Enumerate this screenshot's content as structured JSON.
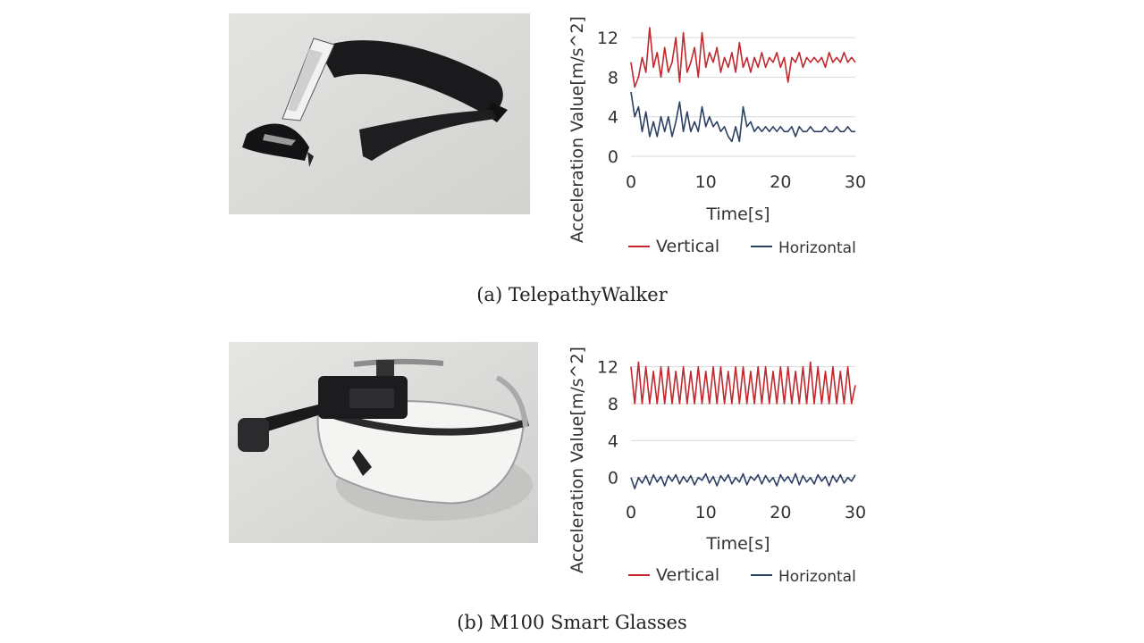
{
  "figure": {
    "caption_a": "(a)  TelepathyWalker",
    "caption_b": "(b)  M100 Smart Glasses"
  },
  "colors": {
    "vertical": "#c0282d",
    "horizontal": "#2d3f63"
  },
  "chart_data": [
    {
      "type": "line",
      "xlabel": "Time[s]",
      "ylabel": "Acceleration Value[m/s^2]",
      "xlim": [
        0,
        30
      ],
      "ylim": [
        0,
        14
      ],
      "xticks": [
        0,
        10,
        20,
        30
      ],
      "yticks": [
        0,
        4,
        8,
        12
      ],
      "grid": true,
      "legend_position": "bottom",
      "series": [
        {
          "name": "Vertical",
          "x": [
            0,
            0.5,
            1,
            1.5,
            2,
            2.5,
            3,
            3.5,
            4,
            4.5,
            5,
            5.5,
            6,
            6.5,
            7,
            7.5,
            8,
            8.5,
            9,
            9.5,
            10,
            10.5,
            11,
            11.5,
            12,
            12.5,
            13,
            13.5,
            14,
            14.5,
            15,
            15.5,
            16,
            16.5,
            17,
            17.5,
            18,
            18.5,
            19,
            19.5,
            20,
            20.5,
            21,
            21.5,
            22,
            22.5,
            23,
            23.5,
            24,
            24.5,
            25,
            25.5,
            26,
            26.5,
            27,
            27.5,
            28,
            28.5,
            29,
            29.5,
            30
          ],
          "y": [
            9.5,
            7,
            8,
            10,
            8.5,
            13,
            9,
            10.5,
            8,
            11,
            8.5,
            9.5,
            12,
            7.5,
            12.5,
            8.5,
            9.5,
            11,
            8,
            12.5,
            9,
            10.5,
            9.5,
            11,
            8.5,
            10,
            9,
            10.5,
            8.5,
            11.5,
            9,
            10,
            8.5,
            10,
            9,
            10.5,
            9,
            10,
            9.5,
            10.5,
            9,
            10,
            7.5,
            10,
            9.5,
            10.5,
            9,
            10,
            9.5,
            10,
            9.5,
            10,
            9,
            10.5,
            9.5,
            10,
            9.5,
            10.5,
            9.5,
            10,
            9.5
          ]
        },
        {
          "name": "Horizontal",
          "x": [
            0,
            0.5,
            1,
            1.5,
            2,
            2.5,
            3,
            3.5,
            4,
            4.5,
            5,
            5.5,
            6,
            6.5,
            7,
            7.5,
            8,
            8.5,
            9,
            9.5,
            10,
            10.5,
            11,
            11.5,
            12,
            12.5,
            13,
            13.5,
            14,
            14.5,
            15,
            15.5,
            16,
            16.5,
            17,
            17.5,
            18,
            18.5,
            19,
            19.5,
            20,
            20.5,
            21,
            21.5,
            22,
            22.5,
            23,
            23.5,
            24,
            24.5,
            25,
            25.5,
            26,
            26.5,
            27,
            27.5,
            28,
            28.5,
            29,
            29.5,
            30
          ],
          "y": [
            6.5,
            4,
            5,
            2.5,
            4.5,
            2,
            3.5,
            2,
            4,
            2.5,
            4,
            2,
            3.5,
            5.5,
            2.5,
            4.5,
            2.5,
            3.5,
            2.5,
            5,
            3,
            4,
            3,
            3.5,
            2.5,
            3,
            2,
            1.5,
            3,
            1.5,
            5,
            3,
            3.5,
            2.5,
            3,
            2.5,
            3,
            2.5,
            3,
            2.5,
            3,
            2.5,
            2.5,
            3,
            2,
            3,
            2.5,
            2.5,
            3,
            2.5,
            2.5,
            2.5,
            3,
            2.5,
            2.5,
            3,
            2.5,
            2.5,
            3,
            2.5,
            2.5
          ]
        }
      ]
    },
    {
      "type": "line",
      "xlabel": "Time[s]",
      "ylabel": "Acceleration Value[m/s^2]",
      "xlim": [
        0,
        30
      ],
      "ylim": [
        -1,
        14
      ],
      "xticks": [
        0,
        10,
        20,
        30
      ],
      "yticks": [
        0,
        4,
        8,
        12
      ],
      "yticks_display": [
        "0",
        "4",
        "8",
        "12"
      ],
      "grid": true,
      "legend_position": "bottom",
      "series": [
        {
          "name": "Vertical",
          "x": [
            0,
            0.5,
            1,
            1.5,
            2,
            2.5,
            3,
            3.5,
            4,
            4.5,
            5,
            5.5,
            6,
            6.5,
            7,
            7.5,
            8,
            8.5,
            9,
            9.5,
            10,
            10.5,
            11,
            11.5,
            12,
            12.5,
            13,
            13.5,
            14,
            14.5,
            15,
            15.5,
            16,
            16.5,
            17,
            17.5,
            18,
            18.5,
            19,
            19.5,
            20,
            20.5,
            21,
            21.5,
            22,
            22.5,
            23,
            23.5,
            24,
            24.5,
            25,
            25.5,
            26,
            26.5,
            27,
            27.5,
            28,
            28.5,
            29,
            29.5,
            30
          ],
          "y": [
            12,
            8,
            12.5,
            8,
            12,
            8,
            11.5,
            8,
            12,
            8,
            12,
            8,
            11.5,
            8,
            12,
            8,
            11.5,
            8,
            12,
            8,
            11.5,
            8,
            12,
            8,
            12,
            8,
            11.5,
            8,
            12,
            8,
            12,
            8,
            11.5,
            8,
            12,
            8,
            12,
            8,
            11.5,
            8,
            12,
            8,
            12,
            8,
            11.5,
            8,
            12,
            8,
            12.5,
            8,
            12,
            8,
            11.5,
            8,
            12,
            8,
            11.5,
            8,
            12,
            8,
            10
          ]
        },
        {
          "name": "Horizontal",
          "x": [
            0,
            0.5,
            1,
            1.5,
            2,
            2.5,
            3,
            3.5,
            4,
            4.5,
            5,
            5.5,
            6,
            6.5,
            7,
            7.5,
            8,
            8.5,
            9,
            9.5,
            10,
            10.5,
            11,
            11.5,
            12,
            12.5,
            13,
            13.5,
            14,
            14.5,
            15,
            15.5,
            16,
            16.5,
            17,
            17.5,
            18,
            18.5,
            19,
            19.5,
            20,
            20.5,
            21,
            21.5,
            22,
            22.5,
            23,
            23.5,
            24,
            24.5,
            25,
            25.5,
            26,
            26.5,
            27,
            27.5,
            28,
            28.5,
            29,
            29.5,
            30
          ],
          "y": [
            0,
            -1.2,
            0,
            -0.6,
            0.2,
            -0.8,
            0.3,
            -0.5,
            0.1,
            -0.9,
            0.2,
            -0.4,
            0.3,
            -0.7,
            0.1,
            -0.5,
            0.2,
            -0.8,
            0,
            -0.3,
            0.4,
            -0.6,
            0.1,
            -0.9,
            0.2,
            -0.4,
            0.3,
            -0.7,
            0,
            -0.5,
            0.4,
            -0.8,
            0.1,
            -0.3,
            0.3,
            -0.7,
            0.2,
            -0.5,
            0,
            -0.9,
            0.3,
            -0.4,
            0.1,
            -0.6,
            0.4,
            -0.8,
            0.2,
            -0.5,
            0,
            -0.7,
            0.3,
            -0.4,
            0.1,
            -0.9,
            0.2,
            -0.5,
            0.3,
            -0.6,
            0,
            -0.4,
            0.3
          ]
        }
      ]
    }
  ]
}
